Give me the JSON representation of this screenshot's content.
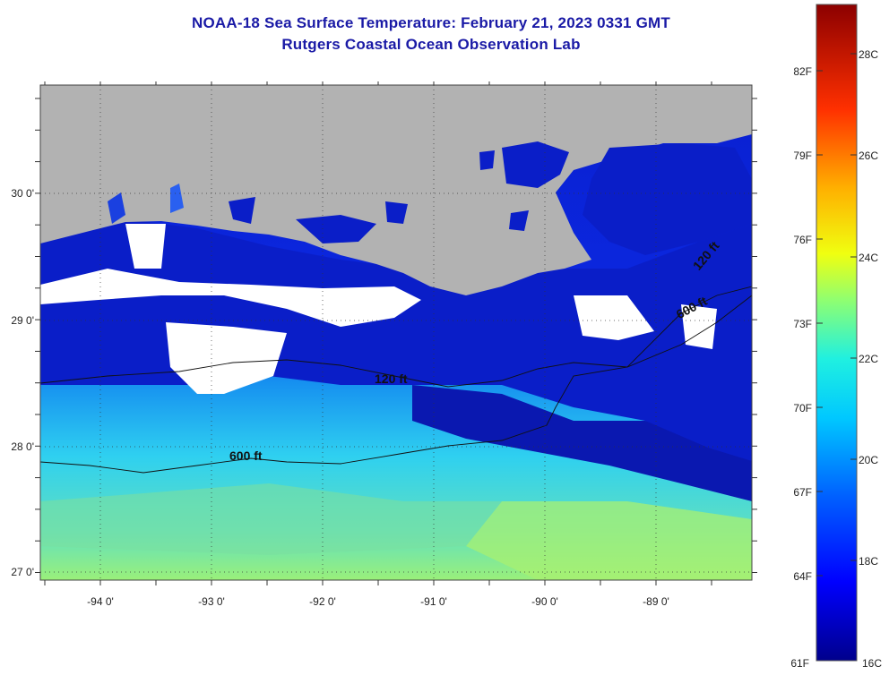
{
  "title": {
    "line1": "NOAA-18 Sea Surface Temperature:  February 21, 2023 0331 GMT",
    "line2": "Rutgers Coastal Ocean Observation Lab"
  },
  "map": {
    "lon_ticks": [
      "-94 0'",
      "-93 0'",
      "-92 0'",
      "-91 0'",
      "-90 0'",
      "-89 0'"
    ],
    "lat_ticks": [
      "30 0'",
      "29 0'",
      "28 0'",
      "27 0'"
    ],
    "contours": [
      "120 ft",
      "600 ft",
      "120 ft",
      "600 ft"
    ]
  },
  "colorbar": {
    "fahrenheit": [
      "82F",
      "79F",
      "76F",
      "73F",
      "70F",
      "67F",
      "64F",
      "61F"
    ],
    "celsius": [
      "28C",
      "26C",
      "24C",
      "22C",
      "20C",
      "18C",
      "16C"
    ]
  },
  "colors": {
    "land": "#b2b2b2",
    "cloud": "#ffffff",
    "title": "#1a1aa6",
    "cold": "#00008c",
    "warm": "#8c0000"
  }
}
